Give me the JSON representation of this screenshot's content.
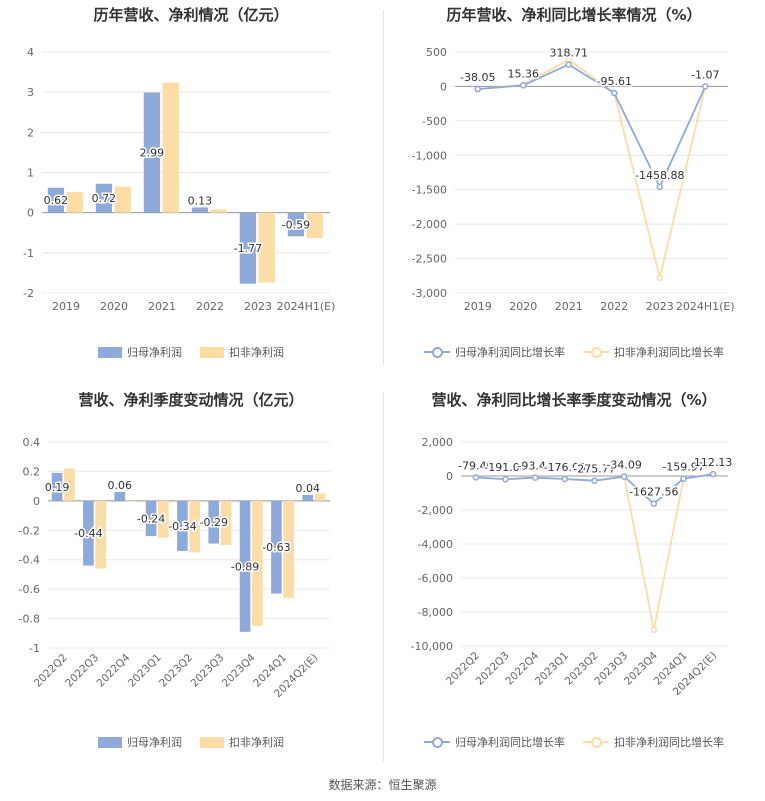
{
  "colors": {
    "blue": "#8eaadb",
    "orange": "#fddca5",
    "blue_line": "#8eaadb",
    "orange_line": "#fddca5"
  },
  "source": "数据来源：恒生聚源",
  "chart_data": [
    {
      "type": "bar",
      "title": "历年营收、净利情况（亿元）",
      "categories": [
        "2019",
        "2020",
        "2021",
        "2022",
        "2023",
        "2024H1(E)"
      ],
      "series": [
        {
          "name": "归母净利润",
          "values": [
            0.62,
            0.72,
            2.99,
            0.13,
            -1.77,
            -0.59
          ]
        },
        {
          "name": "扣非净利润",
          "values": [
            0.51,
            0.65,
            3.24,
            0.08,
            -1.74,
            -0.63
          ]
        }
      ],
      "data_labels": [
        "0.62",
        "0.72",
        "2.99",
        "0.13",
        "-1.77",
        "-0.59"
      ],
      "ylim": [
        -2,
        4
      ],
      "yticks": [
        "4",
        "3",
        "2",
        "1",
        "0",
        "-1",
        "-2"
      ],
      "legend": "bottom",
      "grid": true
    },
    {
      "type": "line",
      "title": "历年营收、净利同比增长率情况（%）",
      "categories": [
        "2019",
        "2020",
        "2021",
        "2022",
        "2023",
        "2024H1(E)"
      ],
      "series": [
        {
          "name": "归母净利润同比增长率",
          "values": [
            -38.05,
            15.36,
            318.71,
            -95.61,
            -1458.88,
            -1.07
          ]
        },
        {
          "name": "扣非净利润同比增长率",
          "values": [
            -40,
            25,
            390,
            -97,
            -2780,
            -2
          ]
        }
      ],
      "data_labels": [
        "-38.05",
        "15.36",
        "318.71",
        "-95.61",
        "-1458.88",
        "-1.07"
      ],
      "ylim": [
        -3000,
        500
      ],
      "yticks": [
        "500",
        "0",
        "-500",
        "-1,000",
        "-1,500",
        "-2,000",
        "-2,500",
        "-3,000"
      ],
      "legend": "bottom",
      "grid": true
    },
    {
      "type": "bar",
      "title": "营收、净利季度变动情况（亿元）",
      "categories": [
        "2022Q2",
        "2022Q3",
        "2022Q4",
        "2023Q1",
        "2023Q2",
        "2023Q3",
        "2023Q4",
        "2024Q1",
        "2024Q2(E)"
      ],
      "series": [
        {
          "name": "归母净利润",
          "values": [
            0.19,
            -0.44,
            0.06,
            -0.24,
            -0.34,
            -0.29,
            -0.89,
            -0.63,
            0.04
          ]
        },
        {
          "name": "扣非净利润",
          "values": [
            0.22,
            -0.46,
            0.0,
            -0.25,
            -0.35,
            -0.3,
            -0.85,
            -0.66,
            0.05
          ]
        }
      ],
      "data_labels": [
        "0.19",
        "-0.44",
        "0.06",
        "-0.24",
        "-0.34",
        "-0.29",
        "-0.89",
        "-0.63",
        "0.04"
      ],
      "ylim": [
        -1,
        0.4
      ],
      "yticks": [
        "0.4",
        "0.2",
        "0",
        "-0.2",
        "-0.4",
        "-0.6",
        "-0.8",
        "-1"
      ],
      "legend": "bottom",
      "grid": true
    },
    {
      "type": "line",
      "title": "营收、净利同比增长率季度变动情况（%）",
      "categories": [
        "2022Q2",
        "2022Q3",
        "2022Q4",
        "2023Q1",
        "2023Q2",
        "2023Q3",
        "2023Q4",
        "2024Q1",
        "2024Q2(E)"
      ],
      "series": [
        {
          "name": "归母净利润同比增长率",
          "values": [
            -79.4,
            -191.08,
            -93.44,
            -176.05,
            -275.77,
            -34.09,
            -1627.56,
            -159.97,
            112.13
          ]
        },
        {
          "name": "扣非净利润同比增长率",
          "values": [
            -80,
            -200,
            -100,
            -180,
            -280,
            -40,
            -9050,
            -165,
            115
          ]
        }
      ],
      "data_labels": [
        "-79.40",
        "-191.08",
        "-93.44",
        "-176.05",
        "-275.77",
        "-34.09",
        "-1627.56",
        "-159.97",
        "112.13"
      ],
      "ylim": [
        -10000,
        2000
      ],
      "yticks": [
        "2,000",
        "0",
        "-2,000",
        "-4,000",
        "-6,000",
        "-8,000",
        "-10,000"
      ],
      "legend": "bottom",
      "grid": true
    }
  ]
}
